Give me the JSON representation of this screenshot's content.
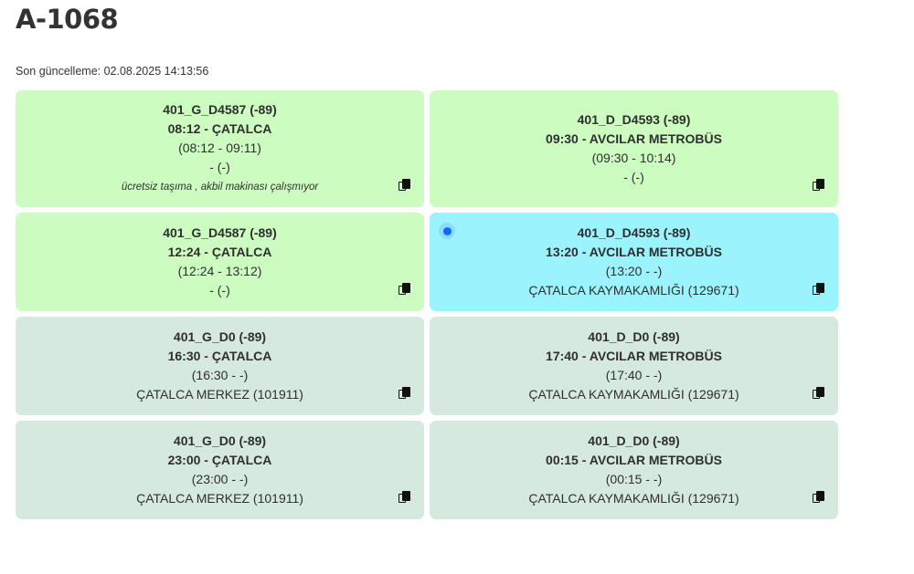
{
  "header": {
    "title": "A-1068",
    "last_updated": "Son güncelleme: 02.08.2025 14:13:56"
  },
  "colors": {
    "planned": "#ccfcc0",
    "active": "#9af3fd",
    "future": "#d6e9df"
  },
  "cards": [
    {
      "route": "401_G_D4587 (-89)",
      "departure": "08:12 - ÇATALCA",
      "time_range": "(08:12 - 09:11)",
      "location": "- (-)",
      "note": "ücretsiz taşıma , akbil makinası çalışmıyor",
      "status": "planned"
    },
    {
      "route": "401_D_D4593 (-89)",
      "departure": "09:30 - AVCILAR METROBÜS",
      "time_range": "(09:30 - 10:14)",
      "location": "- (-)",
      "status": "planned"
    },
    {
      "route": "401_G_D4587 (-89)",
      "departure": "12:24 - ÇATALCA",
      "time_range": "(12:24 - 13:12)",
      "location": "- (-)",
      "status": "planned"
    },
    {
      "route": "401_D_D4593 (-89)",
      "departure": "13:20 - AVCILAR METROBÜS",
      "time_range": "(13:20 - -)",
      "location": "ÇATALCA KAYMAKAMLIĞI (129671)",
      "status": "active"
    },
    {
      "route": "401_G_D0 (-89)",
      "departure": "16:30 - ÇATALCA",
      "time_range": "(16:30 - -)",
      "location": "ÇATALCA MERKEZ (101911)",
      "status": "future"
    },
    {
      "route": "401_D_D0 (-89)",
      "departure": "17:40 - AVCILAR METROBÜS",
      "time_range": "(17:40 - -)",
      "location": "ÇATALCA KAYMAKAMLIĞI (129671)",
      "status": "future"
    },
    {
      "route": "401_G_D0 (-89)",
      "departure": "23:00 - ÇATALCA",
      "time_range": "(23:00 - -)",
      "location": "ÇATALCA MERKEZ (101911)",
      "status": "future"
    },
    {
      "route": "401_D_D0 (-89)",
      "departure": "00:15 - AVCILAR METROBÜS",
      "time_range": "(00:15 - -)",
      "location": "ÇATALCA KAYMAKAMLIĞI (129671)",
      "status": "future"
    }
  ],
  "icons": {
    "copy": "copy-icon",
    "live": "live-indicator-dot"
  }
}
